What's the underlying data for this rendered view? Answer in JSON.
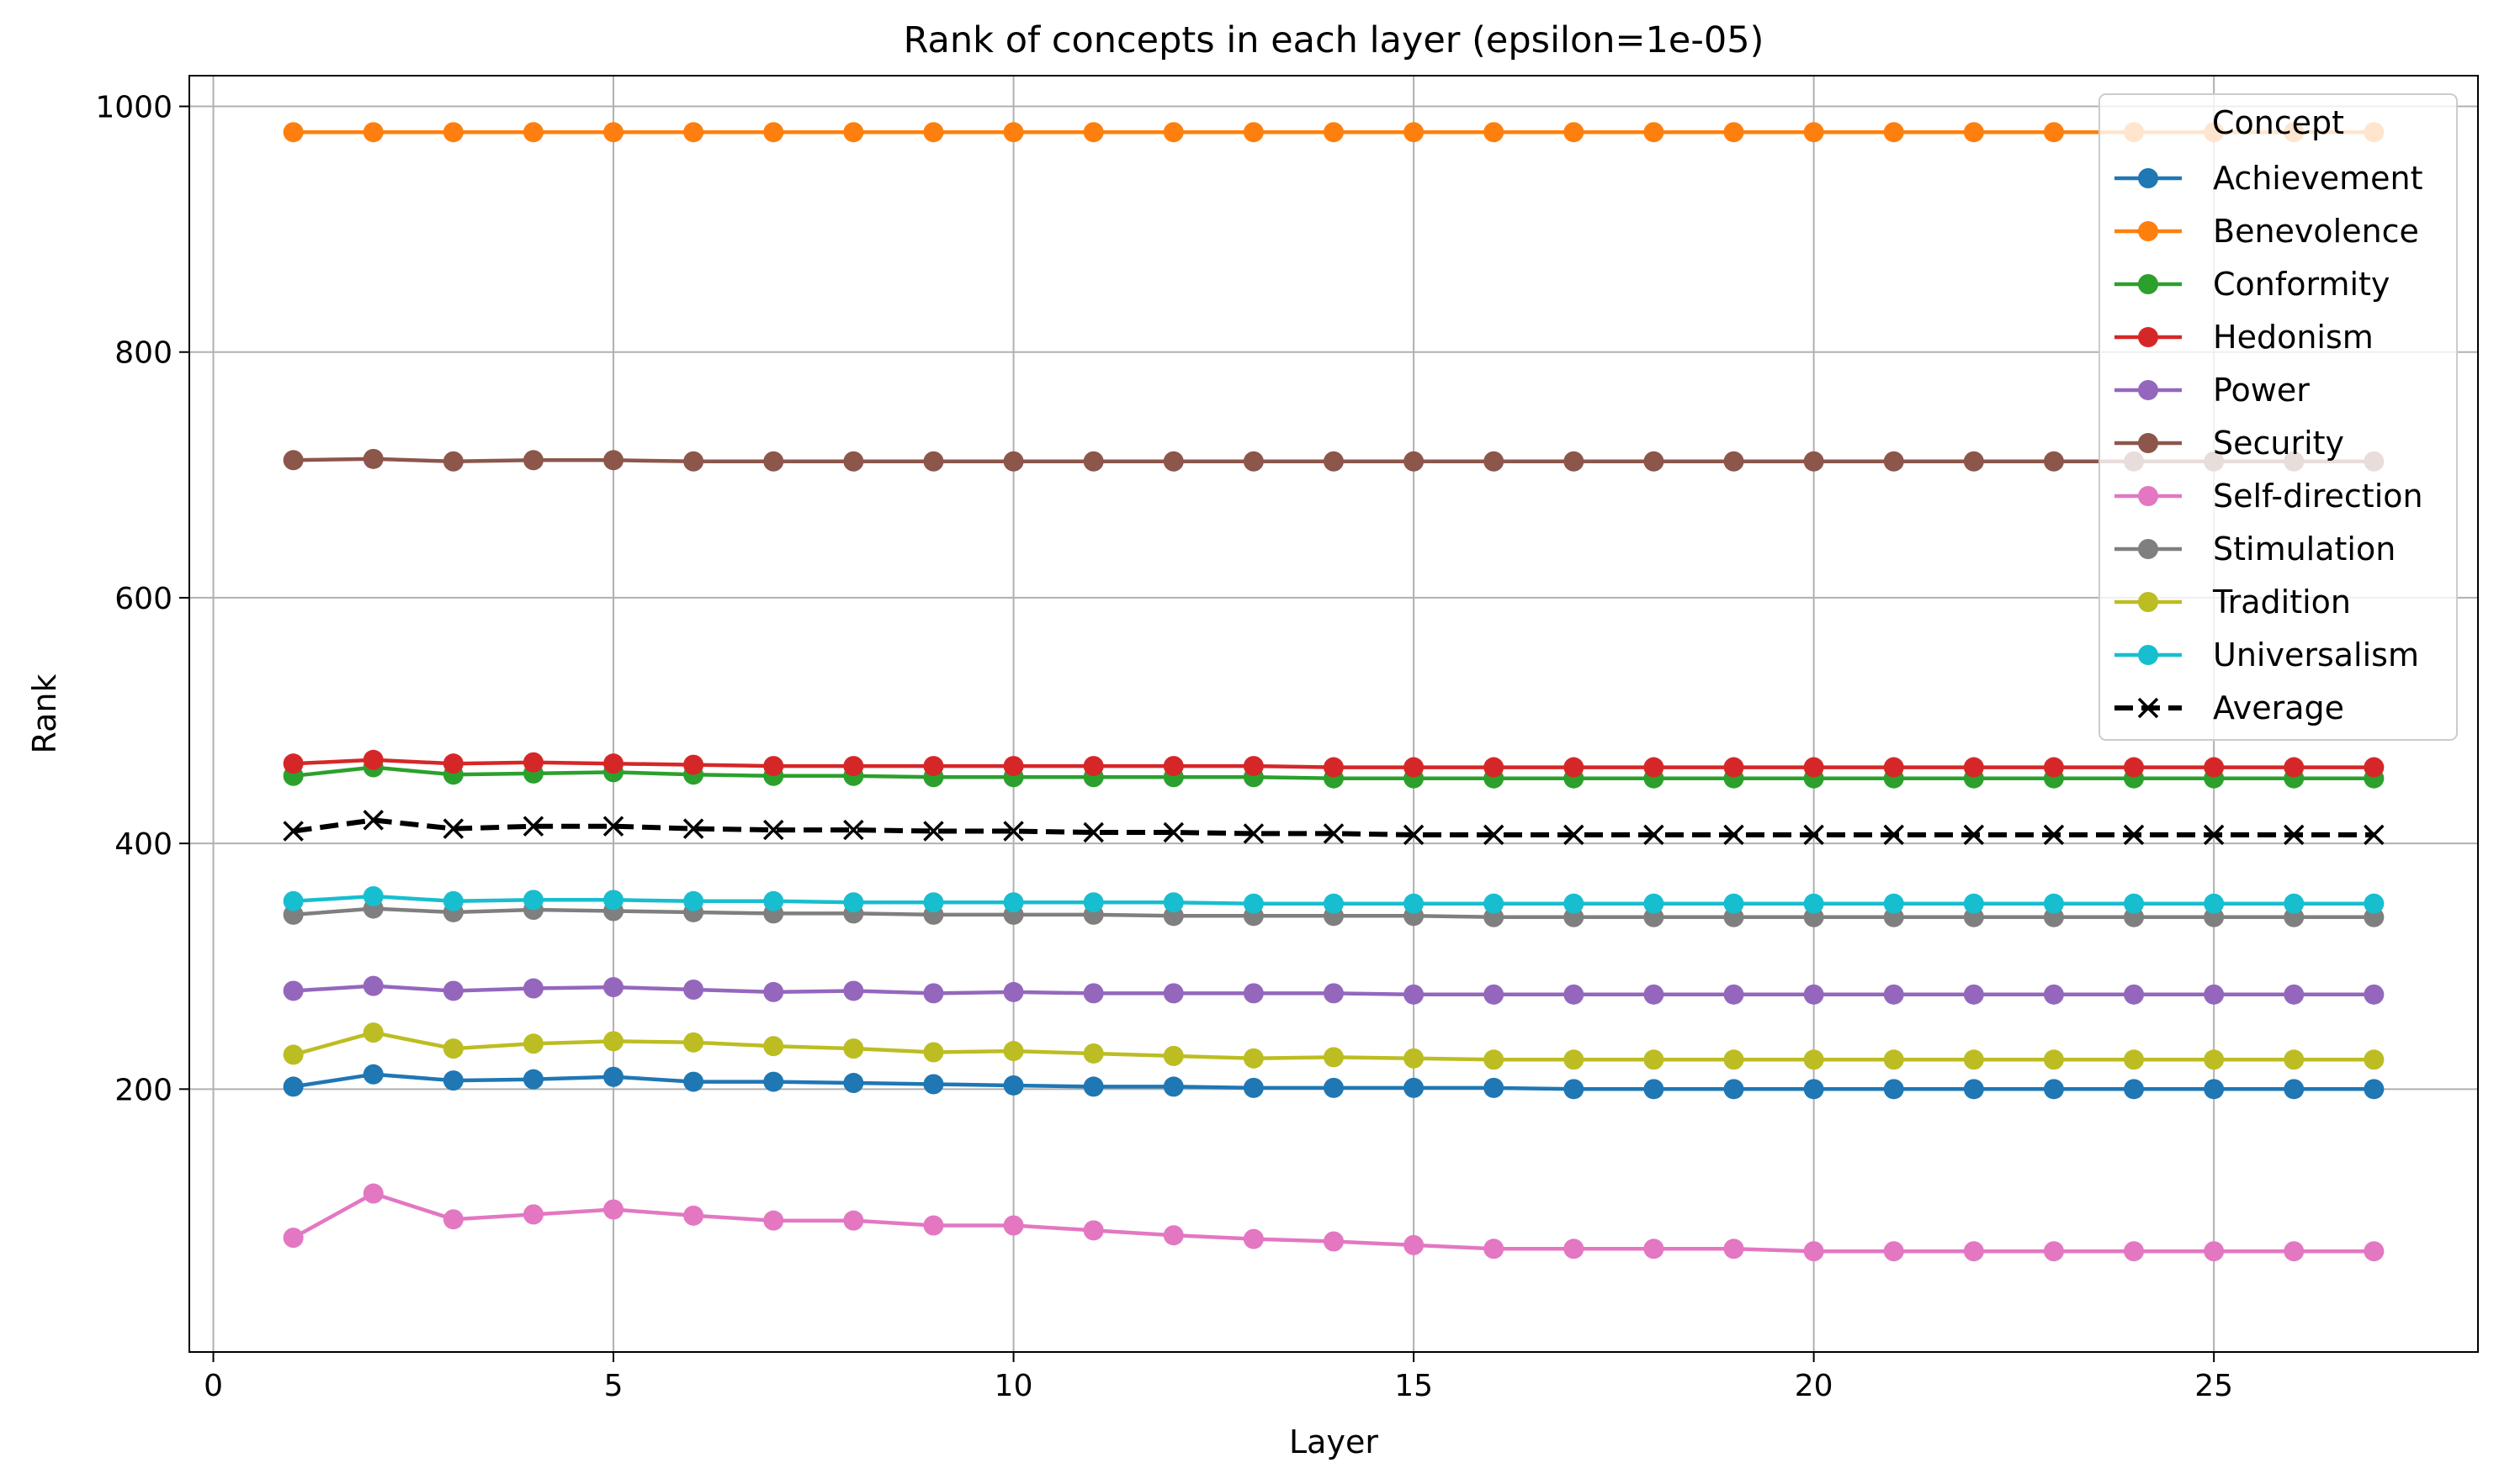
{
  "chart_data": {
    "type": "line",
    "title": "Rank of concepts in each layer (epsilon=1e-05)",
    "xlabel": "Layer",
    "ylabel": "Rank",
    "xlim": [
      -0.3,
      28.3
    ],
    "ylim": [
      -14,
      1025
    ],
    "xticks": [
      0,
      5,
      10,
      15,
      20,
      25
    ],
    "yticks": [
      200,
      400,
      600,
      800,
      1000
    ],
    "grid": true,
    "legend": {
      "title": "Concept",
      "placement": "top-right"
    },
    "x": [
      1,
      2,
      3,
      4,
      5,
      6,
      7,
      8,
      9,
      10,
      11,
      12,
      13,
      14,
      15,
      16,
      17,
      18,
      19,
      20,
      21,
      22,
      23,
      24,
      25,
      26,
      27
    ],
    "series": [
      {
        "name": "Achievement",
        "color": "#1f77b4",
        "style": "solid",
        "marker": "circle",
        "values": [
          202,
          212,
          207,
          208,
          210,
          206,
          206,
          205,
          204,
          203,
          202,
          202,
          201,
          201,
          201,
          201,
          200,
          200,
          200,
          200,
          200,
          200,
          200,
          200,
          200,
          200,
          200
        ]
      },
      {
        "name": "Benevolence",
        "color": "#ff7f0e",
        "style": "solid",
        "marker": "circle",
        "values": [
          979,
          979,
          979,
          979,
          979,
          979,
          979,
          979,
          979,
          979,
          979,
          979,
          979,
          979,
          979,
          979,
          979,
          979,
          979,
          979,
          979,
          979,
          979,
          979,
          979,
          979,
          979
        ]
      },
      {
        "name": "Conformity",
        "color": "#2ca02c",
        "style": "solid",
        "marker": "circle",
        "values": [
          455,
          462,
          456,
          457,
          458,
          456,
          455,
          455,
          454,
          454,
          454,
          454,
          454,
          453,
          453,
          453,
          453,
          453,
          453,
          453,
          453,
          453,
          453,
          453,
          453,
          453,
          453
        ]
      },
      {
        "name": "Hedonism",
        "color": "#d62728",
        "style": "solid",
        "marker": "circle",
        "values": [
          465,
          468,
          465,
          466,
          465,
          464,
          463,
          463,
          463,
          463,
          463,
          463,
          463,
          462,
          462,
          462,
          462,
          462,
          462,
          462,
          462,
          462,
          462,
          462,
          462,
          462,
          462
        ]
      },
      {
        "name": "Power",
        "color": "#9467bd",
        "style": "solid",
        "marker": "circle",
        "values": [
          280,
          284,
          280,
          282,
          283,
          281,
          279,
          280,
          278,
          279,
          278,
          278,
          278,
          278,
          277,
          277,
          277,
          277,
          277,
          277,
          277,
          277,
          277,
          277,
          277,
          277,
          277
        ]
      },
      {
        "name": "Security",
        "color": "#8c564b",
        "style": "solid",
        "marker": "circle",
        "values": [
          712,
          713,
          711,
          712,
          712,
          711,
          711,
          711,
          711,
          711,
          711,
          711,
          711,
          711,
          711,
          711,
          711,
          711,
          711,
          711,
          711,
          711,
          711,
          711,
          711,
          711,
          711
        ]
      },
      {
        "name": "Self-direction",
        "color": "#e377c2",
        "style": "solid",
        "marker": "circle",
        "values": [
          79,
          115,
          94,
          98,
          102,
          97,
          93,
          93,
          89,
          89,
          85,
          81,
          78,
          76,
          73,
          70,
          70,
          70,
          70,
          68,
          68,
          68,
          68,
          68,
          68,
          68,
          68
        ]
      },
      {
        "name": "Stimulation",
        "color": "#7f7f7f",
        "style": "solid",
        "marker": "circle",
        "values": [
          342,
          347,
          344,
          346,
          345,
          344,
          343,
          343,
          342,
          342,
          342,
          341,
          341,
          341,
          341,
          340,
          340,
          340,
          340,
          340,
          340,
          340,
          340,
          340,
          340,
          340,
          340
        ]
      },
      {
        "name": "Tradition",
        "color": "#bcbd22",
        "style": "solid",
        "marker": "circle",
        "values": [
          228,
          246,
          233,
          237,
          239,
          238,
          235,
          233,
          230,
          231,
          229,
          227,
          225,
          226,
          225,
          224,
          224,
          224,
          224,
          224,
          224,
          224,
          224,
          224,
          224,
          224,
          224
        ]
      },
      {
        "name": "Universalism",
        "color": "#17becf",
        "style": "solid",
        "marker": "circle",
        "values": [
          353,
          357,
          353,
          354,
          354,
          353,
          353,
          352,
          352,
          352,
          352,
          352,
          351,
          351,
          351,
          351,
          351,
          351,
          351,
          351,
          351,
          351,
          351,
          351,
          351,
          351,
          351
        ]
      },
      {
        "name": "Average",
        "color": "#000000",
        "style": "dashed",
        "marker": "x",
        "values": [
          410,
          419,
          412,
          414,
          414,
          412,
          411,
          411,
          410,
          410,
          409,
          409,
          408,
          408,
          407,
          407,
          407,
          407,
          407,
          407,
          407,
          407,
          407,
          407,
          407,
          407,
          407
        ]
      }
    ]
  }
}
